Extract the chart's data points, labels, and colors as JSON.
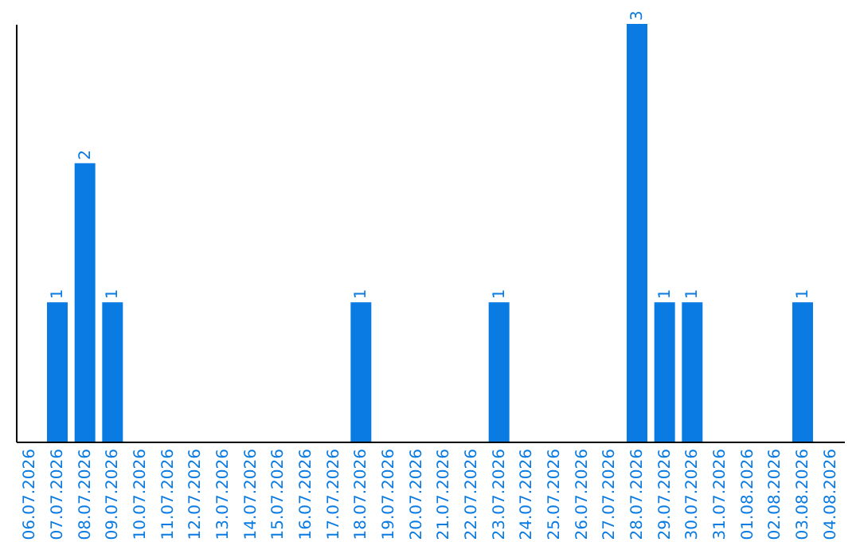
{
  "chart_data": {
    "type": "bar",
    "categories": [
      "06.07.2026",
      "07.07.2026",
      "08.07.2026",
      "09.07.2026",
      "10.07.2026",
      "11.07.2026",
      "12.07.2026",
      "13.07.2026",
      "14.07.2026",
      "15.07.2026",
      "16.07.2026",
      "17.07.2026",
      "18.07.2026",
      "19.07.2026",
      "20.07.2026",
      "21.07.2026",
      "22.07.2026",
      "23.07.2026",
      "24.07.2026",
      "25.07.2026",
      "26.07.2026",
      "27.07.2026",
      "28.07.2026",
      "29.07.2026",
      "30.07.2026",
      "31.07.2026",
      "01.08.2026",
      "02.08.2026",
      "03.08.2026",
      "04.08.2026"
    ],
    "values": [
      0,
      1,
      2,
      1,
      0,
      0,
      0,
      0,
      0,
      0,
      0,
      0,
      1,
      0,
      0,
      0,
      0,
      1,
      0,
      0,
      0,
      0,
      3,
      1,
      1,
      0,
      0,
      0,
      1,
      0
    ],
    "value_labels": [
      null,
      "1",
      "2",
      "1",
      null,
      null,
      null,
      null,
      null,
      null,
      null,
      null,
      "1",
      null,
      null,
      null,
      null,
      "1",
      null,
      null,
      null,
      null,
      "3",
      "1",
      "1",
      null,
      null,
      null,
      "1",
      null
    ],
    "color": "#0a7be2",
    "tick_labels": "x",
    "grid": false
  }
}
